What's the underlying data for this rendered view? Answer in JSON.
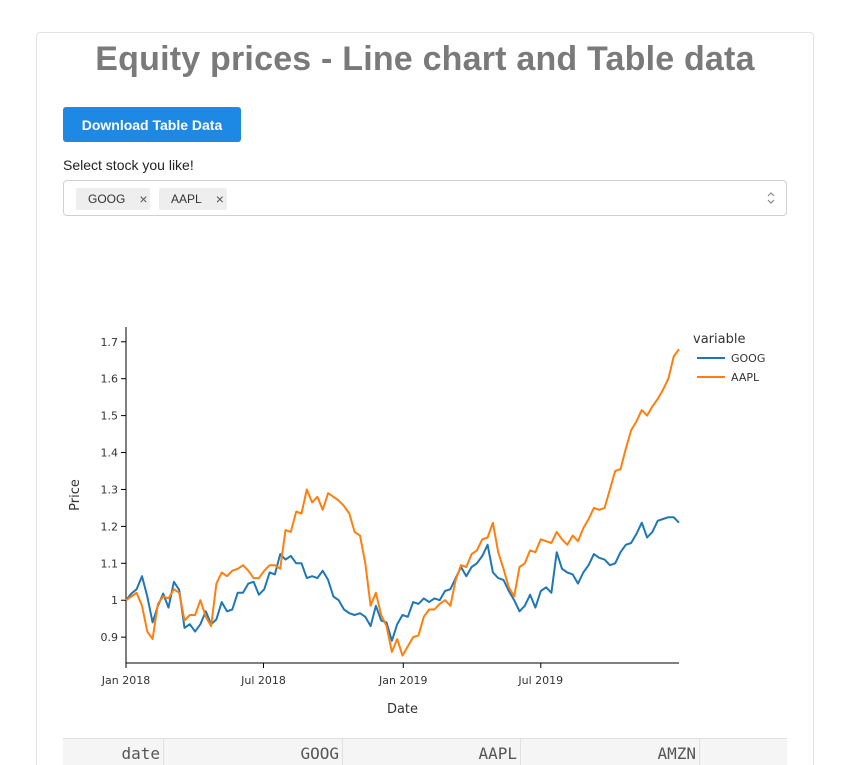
{
  "page": {
    "title": "Equity prices - Line chart and Table data",
    "download_label": "Download Table Data",
    "select_label": "Select stock you like!",
    "selected_tags": [
      "GOOG",
      "AAPL"
    ],
    "remove_glyph": "×"
  },
  "chart_data": {
    "type": "line",
    "xlabel": "Date",
    "ylabel": "Price",
    "legend_title": "variable",
    "legend_position": "top-right",
    "grid": false,
    "x_start": "2018-01-01",
    "x_ticks": [
      "Jan 2018",
      "Jul 2018",
      "Jan 2019",
      "Jul 2019"
    ],
    "y_ticks": [
      "0.9",
      "1",
      "1.1",
      "1.2",
      "1.3",
      "1.4",
      "1.5",
      "1.6",
      "1.7"
    ],
    "ylim": [
      0.83,
      1.74
    ],
    "series": [
      {
        "name": "GOOG",
        "color": "#1f77b4",
        "values": [
          1.0,
          1.018,
          1.03,
          1.065,
          1.01,
          0.94,
          0.985,
          1.018,
          0.98,
          1.05,
          1.028,
          0.925,
          0.935,
          0.915,
          0.935,
          0.97,
          0.935,
          0.948,
          0.995,
          0.97,
          0.975,
          1.02,
          1.02,
          1.045,
          1.05,
          1.015,
          1.03,
          1.075,
          1.07,
          1.125,
          1.11,
          1.12,
          1.1,
          1.1,
          1.06,
          1.065,
          1.06,
          1.08,
          1.055,
          1.01,
          1.0,
          0.975,
          0.965,
          0.96,
          0.965,
          0.955,
          0.93,
          0.985,
          0.945,
          0.94,
          0.89,
          0.935,
          0.96,
          0.955,
          0.995,
          0.99,
          1.005,
          0.995,
          1.005,
          1.0,
          1.025,
          1.03,
          1.06,
          1.09,
          1.065,
          1.09,
          1.1,
          1.12,
          1.15,
          1.075,
          1.06,
          1.055,
          1.025,
          1.0,
          0.97,
          0.985,
          1.015,
          0.98,
          1.025,
          1.035,
          1.02,
          1.13,
          1.085,
          1.075,
          1.07,
          1.045,
          1.075,
          1.095,
          1.125,
          1.115,
          1.11,
          1.095,
          1.1,
          1.13,
          1.15,
          1.155,
          1.18,
          1.21,
          1.17,
          1.185,
          1.215,
          1.22,
          1.225,
          1.225,
          1.21
        ]
      },
      {
        "name": "AAPL",
        "color": "#ff7f0e",
        "values": [
          1.0,
          1.01,
          1.02,
          0.985,
          0.915,
          0.895,
          0.99,
          1.01,
          1.005,
          1.03,
          1.02,
          0.945,
          0.96,
          0.96,
          1.0,
          0.955,
          0.93,
          1.045,
          1.075,
          1.065,
          1.08,
          1.085,
          1.095,
          1.08,
          1.06,
          1.06,
          1.08,
          1.095,
          1.095,
          1.085,
          1.19,
          1.185,
          1.24,
          1.235,
          1.3,
          1.265,
          1.28,
          1.245,
          1.29,
          1.28,
          1.27,
          1.255,
          1.235,
          1.185,
          1.175,
          1.1,
          0.985,
          1.02,
          0.96,
          0.93,
          0.86,
          0.895,
          0.85,
          0.875,
          0.9,
          0.905,
          0.955,
          0.975,
          0.975,
          0.99,
          1.0,
          0.985,
          1.055,
          1.095,
          1.09,
          1.125,
          1.135,
          1.165,
          1.17,
          1.21,
          1.13,
          1.085,
          1.035,
          1.01,
          1.09,
          1.1,
          1.135,
          1.13,
          1.165,
          1.16,
          1.155,
          1.185,
          1.165,
          1.15,
          1.175,
          1.16,
          1.195,
          1.22,
          1.25,
          1.245,
          1.25,
          1.3,
          1.35,
          1.355,
          1.41,
          1.46,
          1.485,
          1.515,
          1.5,
          1.525,
          1.545,
          1.57,
          1.6,
          1.66,
          1.68
        ]
      }
    ]
  },
  "table": {
    "headers": [
      "date",
      "GOOG",
      "AAPL",
      "AMZN"
    ]
  }
}
